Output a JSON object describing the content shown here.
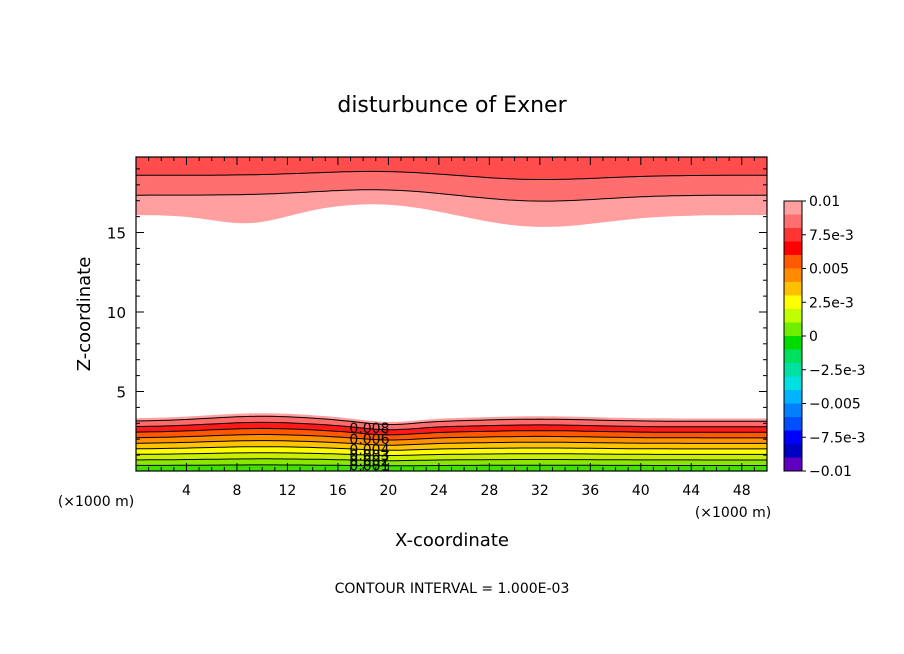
{
  "chart_data": {
    "type": "contour",
    "title": "disturbunce of Exner",
    "xlabel": "X-coordinate",
    "ylabel": "Z-coordinate",
    "x_unit_label": "(×1000 m)",
    "x_unit_label_right": "(×1000 m)",
    "xlim": [
      0,
      50
    ],
    "ylim": [
      0,
      19.75
    ],
    "x_ticks": [
      "4",
      "8",
      "12",
      "16",
      "20",
      "24",
      "28",
      "32",
      "36",
      "40",
      "44",
      "48"
    ],
    "y_ticks": [
      "5",
      "10",
      "15"
    ],
    "contour_labels": [
      "0.008",
      "0.006",
      "0.004",
      "0.003",
      "0.002",
      "0.001"
    ],
    "footer": "CONTOUR INTERVAL = 1.000E-03",
    "colorbar": {
      "labels": [
        "0.01",
        "7.5e-3",
        "0.005",
        "2.5e-3",
        "0",
        "−2.5e-3",
        "−0.005",
        "−7.5e-3",
        "−0.01"
      ],
      "colors": [
        "#ff9f9f",
        "#ff6f6f",
        "#ff3434",
        "#ff0000",
        "#ff5a00",
        "#ff8c00",
        "#ffc000",
        "#ffff00",
        "#bfff00",
        "#6fee00",
        "#00dc00",
        "#00e060",
        "#00e0a0",
        "#00e0e0",
        "#00b4ff",
        "#0080ff",
        "#0050ff",
        "#0000ff",
        "#0000c0",
        "#6000c0"
      ]
    },
    "bottom_layer_levels": [
      0.001,
      0.002,
      0.003,
      0.004,
      0.005,
      0.006,
      0.007,
      0.008,
      0.009
    ],
    "top_layer_levels": [
      0.008,
      0.009,
      0.01
    ],
    "grid": false
  }
}
